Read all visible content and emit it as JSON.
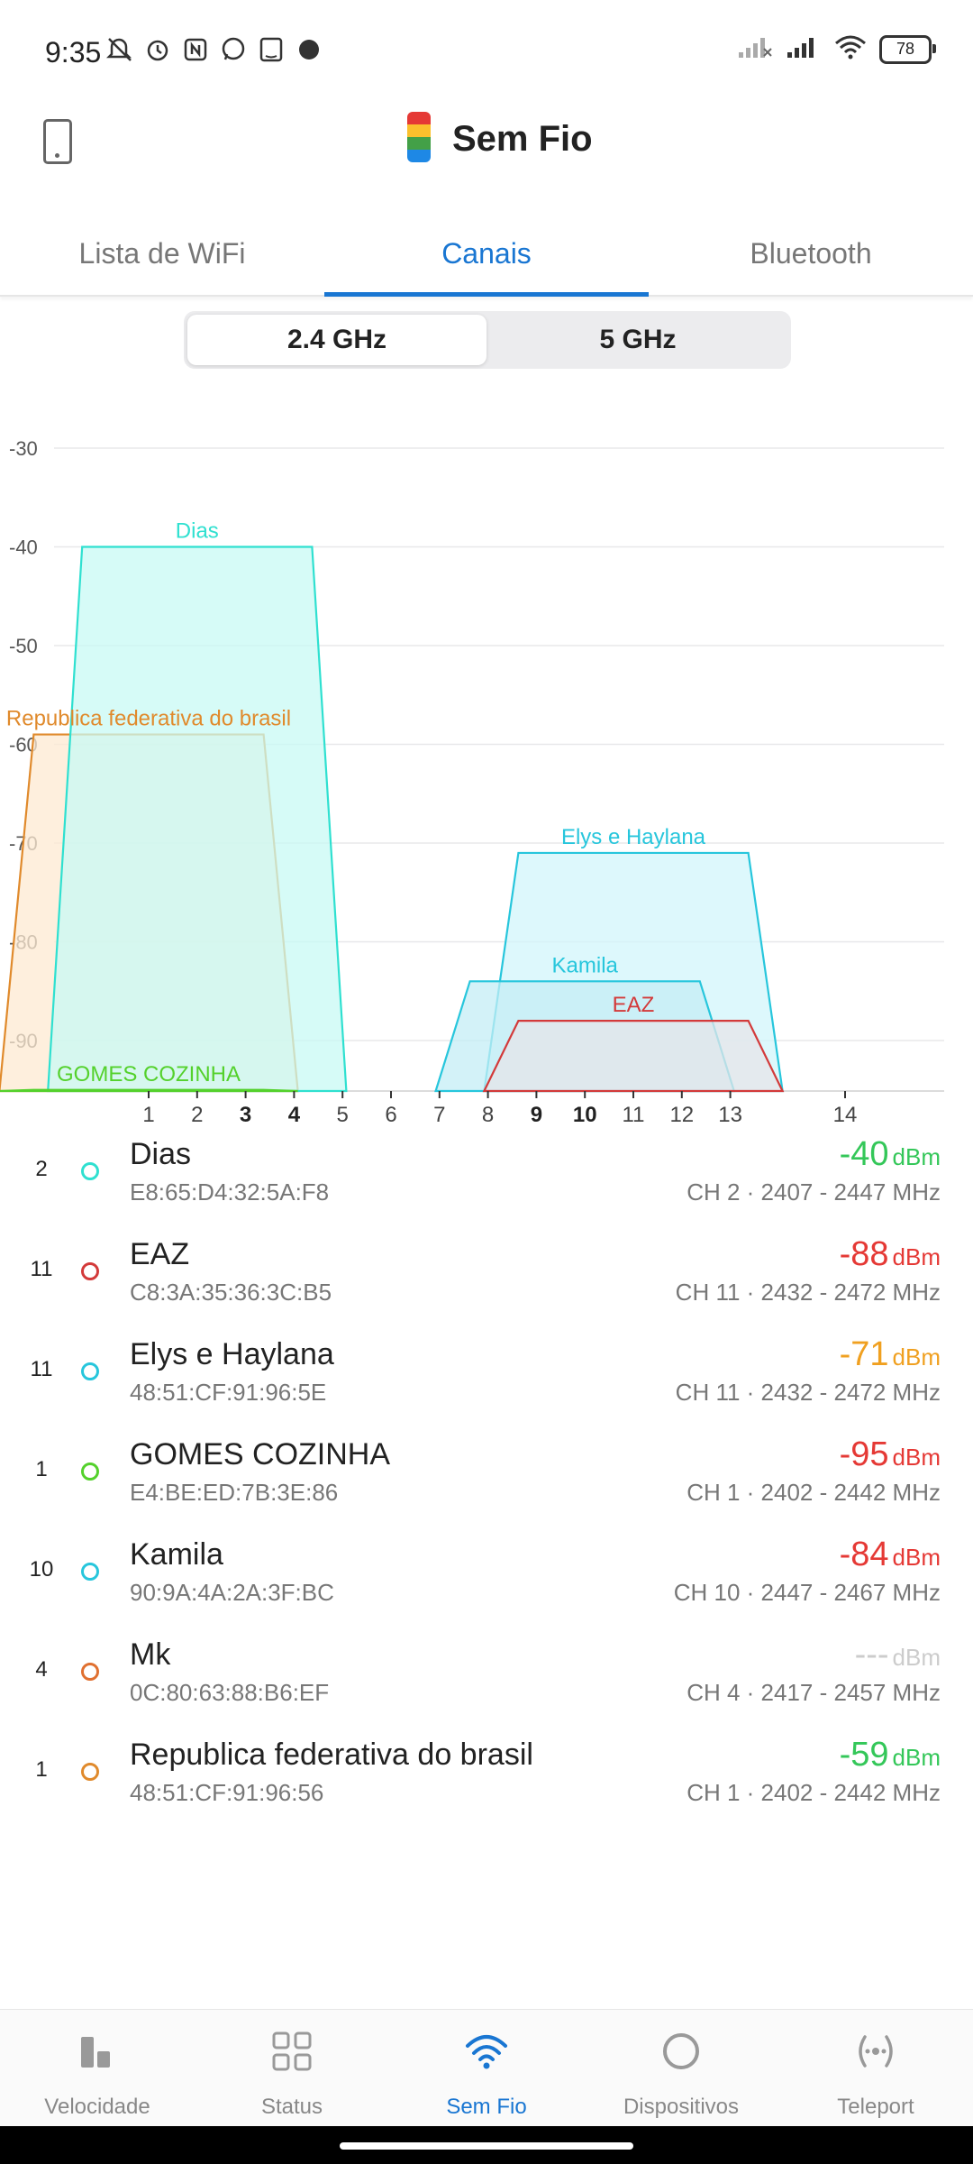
{
  "status_bar": {
    "time": "9:35",
    "battery": "78",
    "icons": [
      "mute-icon",
      "alarm-icon",
      "nfc-icon",
      "whatsapp-icon",
      "amazon-icon",
      "app-icon"
    ],
    "right_icons": [
      "signal-off-icon",
      "signal-icon",
      "wifi-icon",
      "battery-icon"
    ]
  },
  "header": {
    "title": "Sem Fio"
  },
  "tabs": [
    {
      "label": "Lista de WiFi",
      "active": false
    },
    {
      "label": "Canais",
      "active": true
    },
    {
      "label": "Bluetooth",
      "active": false
    }
  ],
  "band_toggle": {
    "options": [
      "2.4 GHz",
      "5 GHz"
    ],
    "selected": "2.4 GHz"
  },
  "chart_data": {
    "type": "area",
    "y_ticks": [
      "-30",
      "-40",
      "-50",
      "-60",
      "-70",
      "-80",
      "-90"
    ],
    "ylim": [
      -95,
      -30
    ],
    "x_ticks": [
      {
        "label": "1",
        "bold": false
      },
      {
        "label": "2",
        "bold": false
      },
      {
        "label": "3",
        "bold": true
      },
      {
        "label": "4",
        "bold": true
      },
      {
        "label": "5",
        "bold": false
      },
      {
        "label": "6",
        "bold": false
      },
      {
        "label": "7",
        "bold": false
      },
      {
        "label": "8",
        "bold": false
      },
      {
        "label": "9",
        "bold": true
      },
      {
        "label": "10",
        "bold": true
      },
      {
        "label": "11",
        "bold": false
      },
      {
        "label": "12",
        "bold": false
      },
      {
        "label": "13",
        "bold": false
      },
      {
        "label": "14",
        "bold": false
      }
    ],
    "grid": true,
    "series": [
      {
        "name": "Republica federativa do brasil",
        "channel": 1,
        "signal": -59,
        "color": "#e08a2c",
        "fill": "#fde9d2"
      },
      {
        "name": "Dias",
        "channel": 2,
        "signal": -40,
        "color": "#2fe0d0",
        "fill": "#c8faf4"
      },
      {
        "name": "Elys e Haylana",
        "channel": 11,
        "signal": -71,
        "color": "#27c6dc",
        "fill": "#d2f6fb"
      },
      {
        "name": "Kamila",
        "channel": 10,
        "signal": -84,
        "color": "#27c6dc",
        "fill": "#c4eef5"
      },
      {
        "name": "EAZ",
        "channel": 11,
        "signal": -88,
        "color": "#d33a3a",
        "fill": "#e6e6ea"
      },
      {
        "name": "GOMES COZINHA",
        "channel": 1,
        "signal": -95,
        "color": "#54d12c",
        "fill": "#d6f7c8"
      }
    ]
  },
  "networks": [
    {
      "channel": "2",
      "name": "Dias",
      "mac": "E8:65:D4:32:5A:F8",
      "signal": "-40",
      "unit": "dBm",
      "signal_color": "#34c759",
      "info": "CH 2 · 2407 - 2447 MHz",
      "dot_color": "#2fe0d0"
    },
    {
      "channel": "11",
      "name": "EAZ",
      "mac": "C8:3A:35:36:3C:B5",
      "signal": "-88",
      "unit": "dBm",
      "signal_color": "#e53935",
      "info": "CH 11 · 2432 - 2472 MHz",
      "dot_color": "#d33a3a"
    },
    {
      "channel": "11",
      "name": "Elys e Haylana",
      "mac": "48:51:CF:91:96:5E",
      "signal": "-71",
      "unit": "dBm",
      "signal_color": "#f0a020",
      "info": "CH 11 · 2432 - 2472 MHz",
      "dot_color": "#27c6dc"
    },
    {
      "channel": "1",
      "name": "GOMES COZINHA",
      "mac": "E4:BE:ED:7B:3E:86",
      "signal": "-95",
      "unit": "dBm",
      "signal_color": "#e53935",
      "info": "CH 1 · 2402 - 2442 MHz",
      "dot_color": "#54d12c"
    },
    {
      "channel": "10",
      "name": "Kamila",
      "mac": "90:9A:4A:2A:3F:BC",
      "signal": "-84",
      "unit": "dBm",
      "signal_color": "#e53935",
      "info": "CH 10 · 2447 - 2467 MHz",
      "dot_color": "#27c6dc"
    },
    {
      "channel": "4",
      "name": "Mk",
      "mac": "0C:80:63:88:B6:EF",
      "signal": "---",
      "unit": "dBm",
      "signal_color": "#cccccc",
      "info": "CH 4 · 2417 - 2457 MHz",
      "dot_color": "#e07030"
    },
    {
      "channel": "1",
      "name": "Republica federativa do brasil",
      "mac": "48:51:CF:91:96:56",
      "signal": "-59",
      "unit": "dBm",
      "signal_color": "#34c759",
      "info": "CH 1 · 2402 - 2442 MHz",
      "dot_color": "#e08a2c"
    }
  ],
  "bottom_nav": [
    {
      "label": "Velocidade",
      "icon": "speed-bars-icon",
      "active": false
    },
    {
      "label": "Status",
      "icon": "grid-icon",
      "active": false
    },
    {
      "label": "Sem Fio",
      "icon": "wifi-icon",
      "active": true
    },
    {
      "label": "Dispositivos",
      "icon": "circle-icon",
      "active": false
    },
    {
      "label": "Teleport",
      "icon": "teleport-icon",
      "active": false
    }
  ],
  "colors": {
    "accent": "#1976d2",
    "good": "#34c759",
    "warn": "#f0a020",
    "bad": "#e53935"
  }
}
